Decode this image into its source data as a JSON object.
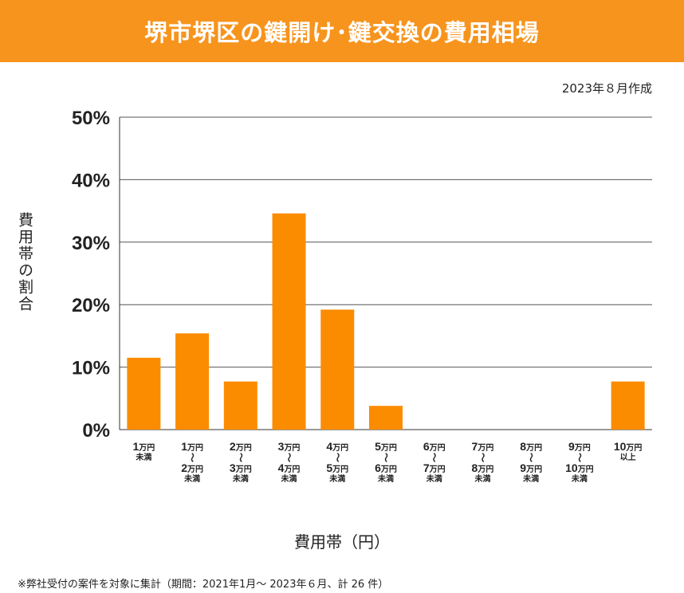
{
  "title": "堺市堺区の鍵開け･鍵交換の費用相場",
  "date": "2023年８月作成",
  "footnote": "※弊社受付の案件を対象に集計（期間：2021年1月～ 2023年６月、計 26 件）",
  "colors": {
    "header": "#f7941d",
    "bar": "#fb8c00",
    "grid": "#555555"
  },
  "chart_data": {
    "type": "bar",
    "title": "堺市堺区の鍵開け･鍵交換の費用相場",
    "xlabel": "費用帯（円）",
    "ylabel": "費用帯の割合",
    "ylim": [
      0,
      50
    ],
    "yticks": [
      "0%",
      "10%",
      "20%",
      "30%",
      "40%",
      "50%"
    ],
    "grid": true,
    "categories": [
      "1万円未満",
      "1万円〜2万円未満",
      "2万円〜3万円未満",
      "3万円〜4万円未満",
      "4万円〜5万円未満",
      "5万円〜6万円未満",
      "6万円〜7万円未満",
      "7万円〜8万円未満",
      "8万円〜9万円未満",
      "9万円〜10万円未満",
      "10万円以上"
    ],
    "category_labels": [
      {
        "lines": [
          {
            "num": "1",
            "unit": "万円"
          },
          {
            "small": "未満"
          }
        ]
      },
      {
        "lines": [
          {
            "num": "1",
            "unit": "万円"
          },
          {
            "tilde": "〜"
          },
          {
            "num": "2",
            "unit": "万円"
          },
          {
            "small": "未満"
          }
        ]
      },
      {
        "lines": [
          {
            "num": "2",
            "unit": "万円"
          },
          {
            "tilde": "〜"
          },
          {
            "num": "3",
            "unit": "万円"
          },
          {
            "small": "未満"
          }
        ]
      },
      {
        "lines": [
          {
            "num": "3",
            "unit": "万円"
          },
          {
            "tilde": "〜"
          },
          {
            "num": "4",
            "unit": "万円"
          },
          {
            "small": "未満"
          }
        ]
      },
      {
        "lines": [
          {
            "num": "4",
            "unit": "万円"
          },
          {
            "tilde": "〜"
          },
          {
            "num": "5",
            "unit": "万円"
          },
          {
            "small": "未満"
          }
        ]
      },
      {
        "lines": [
          {
            "num": "5",
            "unit": "万円"
          },
          {
            "tilde": "〜"
          },
          {
            "num": "6",
            "unit": "万円"
          },
          {
            "small": "未満"
          }
        ]
      },
      {
        "lines": [
          {
            "num": "6",
            "unit": "万円"
          },
          {
            "tilde": "〜"
          },
          {
            "num": "7",
            "unit": "万円"
          },
          {
            "small": "未満"
          }
        ]
      },
      {
        "lines": [
          {
            "num": "7",
            "unit": "万円"
          },
          {
            "tilde": "〜"
          },
          {
            "num": "8",
            "unit": "万円"
          },
          {
            "small": "未満"
          }
        ]
      },
      {
        "lines": [
          {
            "num": "8",
            "unit": "万円"
          },
          {
            "tilde": "〜"
          },
          {
            "num": "9",
            "unit": "万円"
          },
          {
            "small": "未満"
          }
        ]
      },
      {
        "lines": [
          {
            "num": "9",
            "unit": "万円"
          },
          {
            "tilde": "〜"
          },
          {
            "num": "10",
            "unit": "万円"
          },
          {
            "small": "未満"
          }
        ]
      },
      {
        "lines": [
          {
            "num": "10",
            "unit": "万円"
          },
          {
            "small": "以上"
          }
        ]
      }
    ],
    "values": [
      11.5,
      15.4,
      7.7,
      34.6,
      19.2,
      3.8,
      0,
      0,
      0,
      0,
      7.7
    ]
  }
}
